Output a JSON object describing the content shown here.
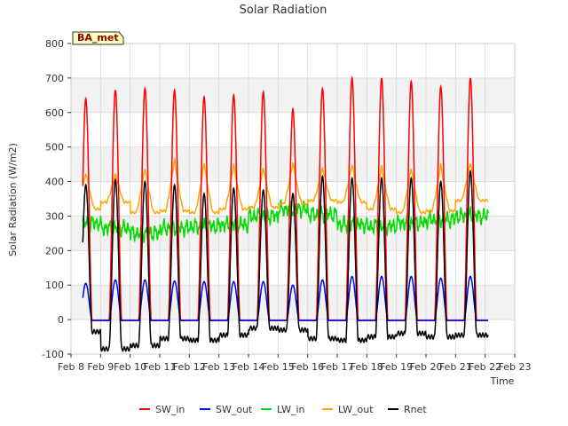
{
  "chart_data": {
    "type": "line",
    "title": "Solar Radiation",
    "xlabel": "Time",
    "ylabel": "Solar Radiation (W/m2)",
    "station_label": "BA_met",
    "ylim": [
      -100,
      800
    ],
    "yticks": [
      -100,
      0,
      100,
      200,
      300,
      400,
      500,
      600,
      700,
      800
    ],
    "xlim": [
      8,
      23
    ],
    "xticks": [
      8,
      9,
      10,
      11,
      12,
      13,
      14,
      15,
      16,
      17,
      18,
      19,
      20,
      21,
      22,
      23
    ],
    "xtick_labels": [
      "Feb 8",
      "Feb 9",
      "Feb 10",
      "Feb 11",
      "Feb 12",
      "Feb 13",
      "Feb 14",
      "Feb 15",
      "Feb 16",
      "Feb 17",
      "Feb 18",
      "Feb 19",
      "Feb 20",
      "Feb 21",
      "Feb 22",
      "Feb 23"
    ],
    "grid": true,
    "legend_position": "bottom",
    "day_peaks": {
      "days": [
        8.5,
        9.5,
        10.5,
        11.5,
        12.5,
        13.5,
        14.5,
        15.5,
        16.5,
        17.5,
        18.5,
        19.5,
        20.5,
        21.5
      ],
      "SW_in": [
        640,
        665,
        670,
        665,
        645,
        650,
        660,
        610,
        670,
        700,
        700,
        690,
        675,
        700
      ],
      "SW_out": [
        105,
        115,
        115,
        112,
        110,
        110,
        110,
        100,
        115,
        125,
        125,
        125,
        120,
        125
      ],
      "LW_out": [
        425,
        420,
        440,
        465,
        455,
        450,
        440,
        455,
        440,
        450,
        445,
        440,
        450,
        455
      ],
      "Rnet": [
        390,
        405,
        400,
        390,
        365,
        380,
        375,
        365,
        415,
        410,
        410,
        410,
        400,
        430
      ]
    },
    "night_levels": {
      "SW_in": -3,
      "SW_out": -2,
      "LW_in": [
        280,
        265,
        250,
        265,
        270,
        275,
        300,
        320,
        305,
        275,
        270,
        280,
        290,
        300
      ],
      "LW_out": [
        320,
        340,
        310,
        315,
        310,
        320,
        325,
        335,
        345,
        340,
        320,
        310,
        315,
        345
      ],
      "Rnet": [
        -35,
        -85,
        -75,
        -55,
        -60,
        -45,
        -25,
        -30,
        -55,
        -60,
        -50,
        -40,
        -50,
        -45
      ]
    },
    "series": [
      {
        "name": "SW_in",
        "color": "#ff0000"
      },
      {
        "name": "SW_out",
        "color": "#0000ff"
      },
      {
        "name": "LW_in",
        "color": "#00dd00"
      },
      {
        "name": "LW_out",
        "color": "#ffa500"
      },
      {
        "name": "Rnet",
        "color": "#000000"
      }
    ]
  }
}
